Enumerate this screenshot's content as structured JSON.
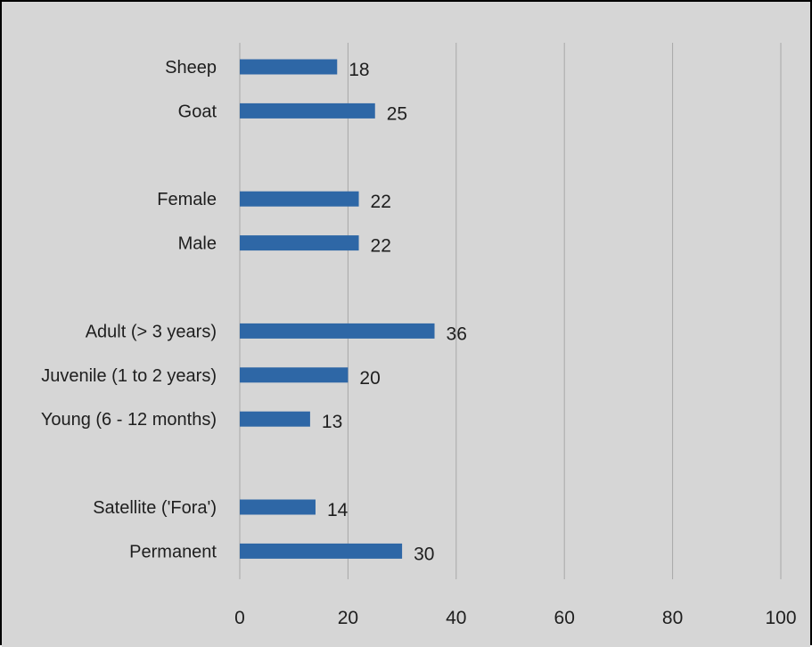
{
  "chart_data": {
    "type": "bar",
    "orientation": "horizontal",
    "title": "",
    "xlabel": "",
    "ylabel": "",
    "categories": [
      "Sheep",
      "Goat",
      "",
      "Female",
      "Male",
      "",
      "Adult (> 3 years)",
      "Juvenile (1 to 2 years)",
      "Young (6 - 12 months)",
      "",
      "Satellite ('Fora')",
      "Permanent"
    ],
    "values": [
      18,
      25,
      null,
      22,
      22,
      null,
      36,
      20,
      13,
      null,
      14,
      30
    ],
    "data_labels": [
      "18",
      "25",
      "",
      "22",
      "22",
      "",
      "36",
      "20",
      "13",
      "",
      "14",
      "30"
    ],
    "xlim": [
      0,
      100
    ],
    "x_ticks": [
      0,
      20,
      40,
      60,
      80,
      100
    ],
    "grid": "vertical",
    "legend": "none",
    "colors": {
      "bar": "#2e67a6",
      "background": "#d6d6d6",
      "gridline": "#a8a8a8",
      "frame": "#000000"
    }
  }
}
